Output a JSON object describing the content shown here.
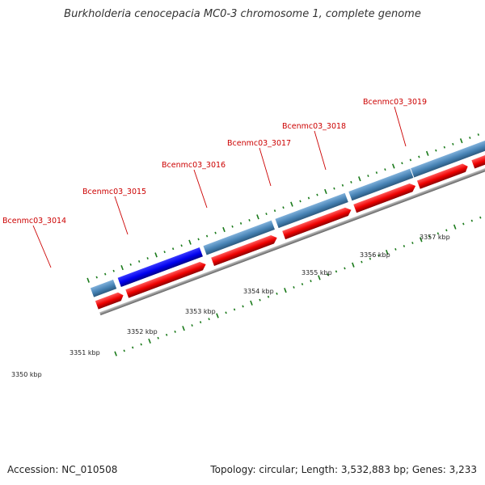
{
  "title": "Burkholderia cenocepacia MC0-3 chromosome 1, complete genome",
  "accession_text": "Accession: NC_010508",
  "topology_text": "Topology: circular; Length: 3,532,883 bp; Genes: 3,233",
  "gene_labels": [
    "Bcenmc03_3014",
    "Bcenmc03_3015",
    "Bcenmc03_3016",
    "Bcenmc03_3017",
    "Bcenmc03_3018",
    "Bcenmc03_3019"
  ],
  "kbp_labels": [
    "3350 kbp",
    "3351 kbp",
    "3352 kbp",
    "3353 kbp",
    "3354 kbp",
    "3355 kbp",
    "3356 kbp",
    "3357 kbp"
  ],
  "colors": {
    "gene_blue": "#4682b4",
    "gene_blue_highlight": "#0000ee",
    "cds_red": "#ee0000",
    "backbone": "#808080",
    "tick_green": "#1a7a1a",
    "label_red": "#cc0000"
  }
}
